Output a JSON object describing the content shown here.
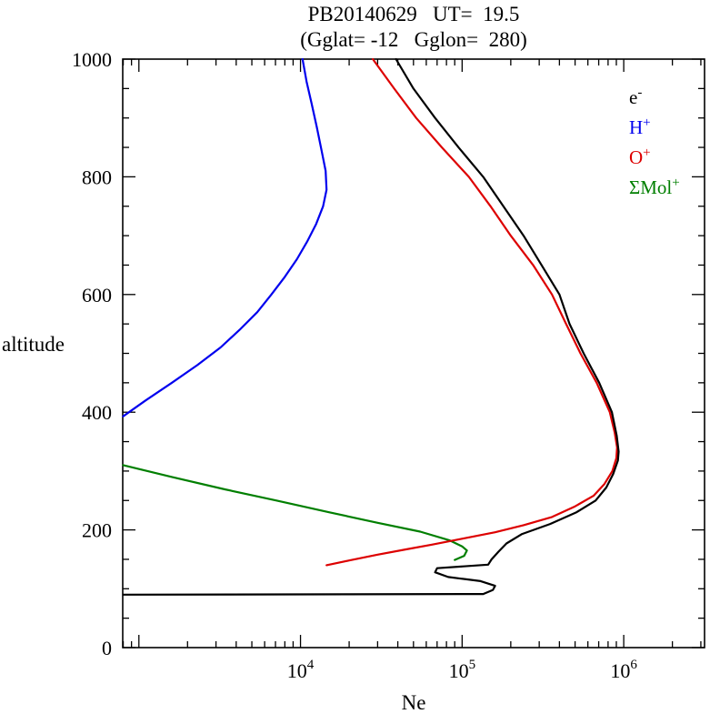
{
  "page": {
    "background": "#ffffff"
  },
  "chart_data": {
    "type": "line",
    "title": "PB20140629   UT=  19.5",
    "subtitle": "(Gglat= -12   Gglon=  280)",
    "xlabel": "Ne",
    "ylabel": "altitude",
    "x_scale": "log10",
    "x_range_exp": [
      2.9,
      6.5
    ],
    "y_range": [
      0,
      1000
    ],
    "x_labeled_ticks": [
      {
        "exp": 4,
        "label": "10^4"
      },
      {
        "exp": 5,
        "label": "10^5"
      },
      {
        "exp": 6,
        "label": "10^6"
      }
    ],
    "x_major_tick_exps": [
      3,
      4,
      5,
      6
    ],
    "y_major_ticks": [
      0,
      200,
      400,
      600,
      800,
      1000
    ],
    "y_minor_step": 50,
    "grid": "off",
    "frame_color": "#000000",
    "legend_position": "top-right-inside",
    "legend": [
      {
        "id": "e",
        "base": "e",
        "sup": "-",
        "color": "#000000"
      },
      {
        "id": "h-plus",
        "base": "H",
        "sup": "+",
        "color": "#0000ee"
      },
      {
        "id": "o-plus",
        "base": "O",
        "sup": "+",
        "color": "#dd0000"
      },
      {
        "id": "mol-plus",
        "base": "ΣMol",
        "sup": "+",
        "color": "#007f00"
      }
    ],
    "series": [
      {
        "id": "e",
        "name": "e-",
        "color": "#000000",
        "points": [
          [
            800,
            90
          ],
          [
            135000,
            91
          ],
          [
            155000,
            98
          ],
          [
            160000,
            105
          ],
          [
            130000,
            113
          ],
          [
            82000,
            120
          ],
          [
            68000,
            128
          ],
          [
            70000,
            135
          ],
          [
            145000,
            141
          ],
          [
            152000,
            150
          ],
          [
            168000,
            163
          ],
          [
            188000,
            177
          ],
          [
            235000,
            193
          ],
          [
            350000,
            210
          ],
          [
            510000,
            230
          ],
          [
            670000,
            250
          ],
          [
            780000,
            272
          ],
          [
            860000,
            295
          ],
          [
            920000,
            318
          ],
          [
            930000,
            333
          ],
          [
            905000,
            360
          ],
          [
            845000,
            400
          ],
          [
            705000,
            450
          ],
          [
            565000,
            500
          ],
          [
            462000,
            550
          ],
          [
            400000,
            600
          ],
          [
            310000,
            650
          ],
          [
            240000,
            700
          ],
          [
            180000,
            750
          ],
          [
            135000,
            800
          ],
          [
            95000,
            850
          ],
          [
            68000,
            900
          ],
          [
            50000,
            950
          ],
          [
            39000,
            1000
          ]
        ]
      },
      {
        "id": "h-plus",
        "name": "H+",
        "color": "#0000ee",
        "points": [
          [
            800,
            393
          ],
          [
            1100,
            420
          ],
          [
            1600,
            450
          ],
          [
            2300,
            480
          ],
          [
            3200,
            510
          ],
          [
            4200,
            540
          ],
          [
            5400,
            570
          ],
          [
            6600,
            600
          ],
          [
            8000,
            630
          ],
          [
            9500,
            660
          ],
          [
            11000,
            690
          ],
          [
            12500,
            720
          ],
          [
            13800,
            750
          ],
          [
            14500,
            778
          ],
          [
            14300,
            810
          ],
          [
            13500,
            845
          ],
          [
            12600,
            885
          ],
          [
            11700,
            925
          ],
          [
            10900,
            962
          ],
          [
            10300,
            1000
          ]
        ]
      },
      {
        "id": "o-plus",
        "name": "O+",
        "color": "#dd0000",
        "points": [
          [
            14500,
            140
          ],
          [
            20000,
            148
          ],
          [
            30000,
            158
          ],
          [
            45000,
            167
          ],
          [
            65000,
            175
          ],
          [
            100000,
            185
          ],
          [
            160000,
            196
          ],
          [
            240000,
            208
          ],
          [
            360000,
            222
          ],
          [
            500000,
            240
          ],
          [
            650000,
            258
          ],
          [
            760000,
            278
          ],
          [
            850000,
            300
          ],
          [
            900000,
            322
          ],
          [
            910000,
            340
          ],
          [
            880000,
            365
          ],
          [
            820000,
            400
          ],
          [
            680000,
            450
          ],
          [
            540000,
            500
          ],
          [
            440000,
            550
          ],
          [
            360000,
            600
          ],
          [
            275000,
            650
          ],
          [
            200000,
            700
          ],
          [
            150000,
            750
          ],
          [
            110000,
            800
          ],
          [
            75000,
            850
          ],
          [
            52000,
            900
          ],
          [
            38000,
            950
          ],
          [
            28000,
            1000
          ]
        ]
      },
      {
        "id": "mol-plus",
        "name": "SigmaMol+",
        "color": "#007f00",
        "points": [
          [
            800,
            310
          ],
          [
            1600,
            290
          ],
          [
            3400,
            269
          ],
          [
            7100,
            250
          ],
          [
            15000,
            230
          ],
          [
            30000,
            212
          ],
          [
            55000,
            197
          ],
          [
            84000,
            182
          ],
          [
            100000,
            172
          ],
          [
            107000,
            165
          ],
          [
            103000,
            156
          ],
          [
            90000,
            149
          ]
        ]
      }
    ]
  }
}
